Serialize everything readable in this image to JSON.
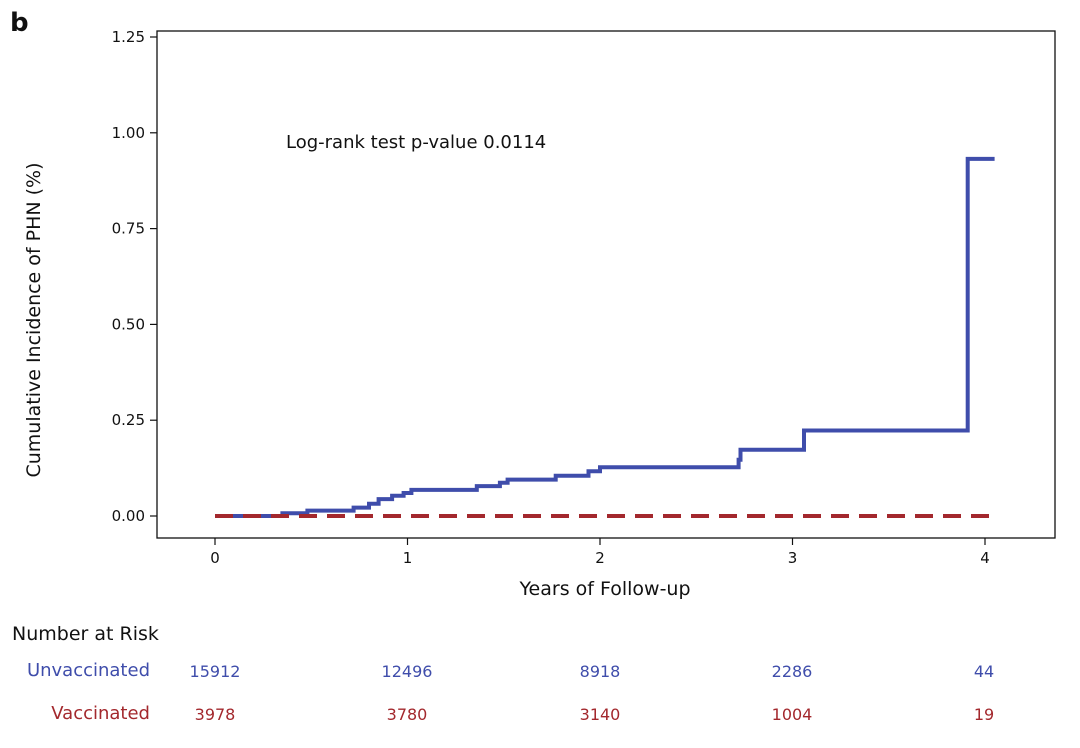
{
  "figure": {
    "panel_label": "b"
  },
  "chart_data": {
    "type": "line",
    "title": "",
    "xlabel": "Years of Follow-up",
    "ylabel": "Cumulative Incidence of PHN (%)",
    "xlim": [
      -0.3,
      4.35
    ],
    "ylim": [
      -0.05,
      1.3
    ],
    "xticks": [
      0,
      1,
      2,
      3,
      4
    ],
    "xtick_labels": [
      "0",
      "1",
      "2",
      "3",
      "4"
    ],
    "yticks": [
      0,
      0.25,
      0.5,
      0.75,
      1.0,
      1.25
    ],
    "ytick_labels": [
      "0.00",
      "0.25",
      "0.50",
      "0.75",
      "1.00",
      "1.25"
    ],
    "grid": false,
    "annotation": "Log-rank test p-value 0.0114",
    "series": [
      {
        "name": "Unvaccinated",
        "color": "#3f4dab",
        "style": "solid",
        "step": true,
        "points": [
          [
            0.0,
            0.0
          ],
          [
            0.35,
            0.0
          ],
          [
            0.35,
            0.007
          ],
          [
            0.48,
            0.007
          ],
          [
            0.48,
            0.014
          ],
          [
            0.72,
            0.014
          ],
          [
            0.72,
            0.022
          ],
          [
            0.8,
            0.022
          ],
          [
            0.8,
            0.032
          ],
          [
            0.85,
            0.032
          ],
          [
            0.85,
            0.044
          ],
          [
            0.92,
            0.044
          ],
          [
            0.92,
            0.053
          ],
          [
            0.98,
            0.053
          ],
          [
            0.98,
            0.06
          ],
          [
            1.02,
            0.06
          ],
          [
            1.02,
            0.068
          ],
          [
            1.36,
            0.068
          ],
          [
            1.36,
            0.078
          ],
          [
            1.48,
            0.078
          ],
          [
            1.48,
            0.087
          ],
          [
            1.52,
            0.087
          ],
          [
            1.52,
            0.095
          ],
          [
            1.77,
            0.095
          ],
          [
            1.77,
            0.105
          ],
          [
            1.94,
            0.105
          ],
          [
            1.94,
            0.117
          ],
          [
            2.0,
            0.117
          ],
          [
            2.0,
            0.127
          ],
          [
            2.72,
            0.127
          ],
          [
            2.72,
            0.147
          ],
          [
            2.73,
            0.147
          ],
          [
            2.73,
            0.173
          ],
          [
            3.06,
            0.173
          ],
          [
            3.06,
            0.223
          ],
          [
            3.91,
            0.223
          ],
          [
            3.91,
            0.932
          ],
          [
            4.05,
            0.932
          ]
        ]
      },
      {
        "name": "Vaccinated",
        "color": "#a3282d",
        "style": "dashed",
        "step": true,
        "points": [
          [
            0.0,
            0.0
          ],
          [
            4.05,
            0.0
          ]
        ]
      }
    ],
    "number_at_risk": {
      "title": "Number at Risk",
      "time_points": [
        0,
        1,
        2,
        3,
        4
      ],
      "rows": [
        {
          "label": "Unvaccinated",
          "color": "#3f4dab",
          "values": [
            "15912",
            "12496",
            "8918",
            "2286",
            "44"
          ]
        },
        {
          "label": "Vaccinated",
          "color": "#a3282d",
          "values": [
            "3978",
            "3780",
            "3140",
            "1004",
            "19"
          ]
        }
      ]
    }
  }
}
